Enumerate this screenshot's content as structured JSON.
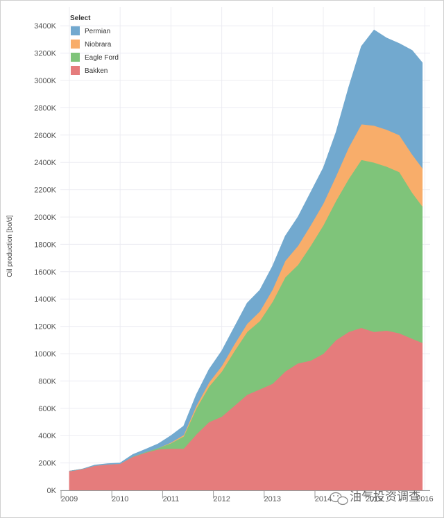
{
  "chart_data": {
    "type": "area",
    "stacked": true,
    "ylabel": "Oil production [bo/d]",
    "ylim": [
      0,
      3500
    ],
    "y_ticks": [
      "0K",
      "200K",
      "400K",
      "600K",
      "800K",
      "1000K",
      "1200K",
      "1400K",
      "1600K",
      "1800K",
      "2000K",
      "2200K",
      "2400K",
      "2600K",
      "2800K",
      "3000K",
      "3200K",
      "3400K"
    ],
    "x_ticks": [
      "2009",
      "2010",
      "2011",
      "2012",
      "2013",
      "2014",
      "2015",
      "2016"
    ],
    "grid": true,
    "legend": {
      "title": "Select",
      "placement": "top-left",
      "entries": [
        "Permian",
        "Niobrara",
        "Eagle Ford",
        "Bakken"
      ]
    },
    "x": [
      2009.0,
      2009.25,
      2009.5,
      2009.75,
      2010.0,
      2010.25,
      2010.5,
      2010.75,
      2011.0,
      2011.25,
      2011.5,
      2011.75,
      2012.0,
      2012.25,
      2012.5,
      2012.75,
      2013.0,
      2013.25,
      2013.5,
      2013.75,
      2014.0,
      2014.25,
      2014.5,
      2014.75,
      2015.0,
      2015.25,
      2015.5,
      2015.75,
      2015.95
    ],
    "series": [
      {
        "name": "Bakken",
        "color": "#e57c7c",
        "values": [
          140,
          155,
          180,
          190,
          195,
          245,
          275,
          300,
          305,
          305,
          410,
          500,
          540,
          620,
          700,
          740,
          780,
          870,
          930,
          950,
          1000,
          1100,
          1160,
          1190,
          1160,
          1170,
          1150,
          1110,
          1080
        ]
      },
      {
        "name": "Eagle Ford",
        "color": "#7fc47a",
        "values": [
          0,
          0,
          0,
          0,
          0,
          2,
          5,
          10,
          40,
          90,
          190,
          260,
          330,
          400,
          460,
          500,
          600,
          690,
          720,
          840,
          940,
          1020,
          1120,
          1230,
          1240,
          1200,
          1180,
          1070,
          1000
        ]
      },
      {
        "name": "Niobrara",
        "color": "#f8ad6a",
        "values": [
          0,
          0,
          0,
          0,
          0,
          0,
          0,
          0,
          5,
          10,
          20,
          30,
          40,
          50,
          60,
          70,
          90,
          120,
          140,
          150,
          160,
          180,
          230,
          260,
          270,
          270,
          270,
          280,
          280
        ]
      },
      {
        "name": "Permian",
        "color": "#72a9cf",
        "values": [
          0,
          0,
          5,
          5,
          5,
          15,
          20,
          30,
          50,
          65,
          80,
          95,
          110,
          125,
          150,
          155,
          170,
          180,
          210,
          240,
          260,
          320,
          440,
          570,
          700,
          670,
          670,
          760,
          770
        ]
      }
    ]
  },
  "watermark_text": "油气投资调查"
}
